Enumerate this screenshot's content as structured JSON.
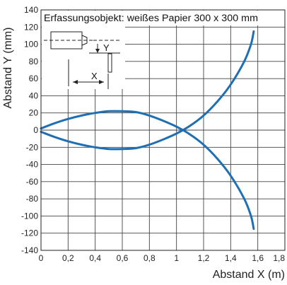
{
  "chart_data": {
    "type": "line",
    "caption": "Erfassungsobjekt: weißes Papier 300 x 300 mm",
    "xlabel": "Abstand X (m)",
    "ylabel": "Abstand Y (mm)",
    "xlim": [
      0,
      1.8
    ],
    "ylim": [
      -140,
      140
    ],
    "x_ticks": [
      "0",
      "0,2",
      "0,4",
      "0,6",
      "0,8",
      "1",
      "1,2",
      "1,4",
      "1,6",
      "1,8"
    ],
    "y_ticks": [
      "140",
      "120",
      "100",
      "80",
      "60",
      "40",
      "20",
      "0",
      "-20",
      "-40",
      "-60",
      "-80",
      "-100",
      "-120",
      "-140"
    ],
    "x_tick_values": [
      0,
      0.2,
      0.4,
      0.6,
      0.8,
      1.0,
      1.2,
      1.4,
      1.6,
      1.8
    ],
    "y_tick_values": [
      140,
      120,
      100,
      80,
      60,
      40,
      20,
      0,
      -20,
      -40,
      -60,
      -80,
      -100,
      -120,
      -140
    ],
    "grid": true,
    "line_color": "#1f6fb4",
    "series": [
      {
        "x": [
          0,
          0.1,
          0.2,
          0.3,
          0.4,
          0.5,
          0.6,
          0.7,
          0.8,
          0.9,
          1.0,
          1.1,
          1.2,
          1.3,
          1.4,
          1.5,
          1.55,
          1.57
        ],
        "y": [
          2,
          8,
          13,
          17,
          20,
          22,
          22,
          21,
          17,
          11,
          4,
          -5,
          -17,
          -33,
          -53,
          -80,
          -100,
          -115
        ]
      },
      {
        "x": [
          0,
          0.1,
          0.2,
          0.3,
          0.4,
          0.5,
          0.6,
          0.7,
          0.8,
          0.9,
          1.0,
          1.1,
          1.2,
          1.3,
          1.4,
          1.5,
          1.55,
          1.57
        ],
        "y": [
          -2,
          -8,
          -13,
          -17,
          -20,
          -22,
          -22,
          -21,
          -17,
          -11,
          -4,
          5,
          17,
          33,
          53,
          80,
          100,
          115
        ]
      }
    ],
    "inset": {
      "y_label": "Y",
      "x_label": "X"
    }
  }
}
